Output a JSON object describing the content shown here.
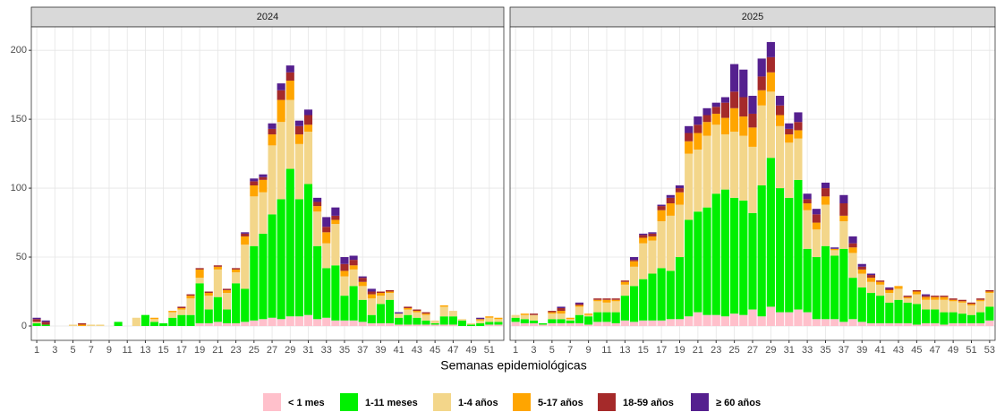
{
  "chart_data": {
    "type": "bar",
    "stacked": true,
    "x_label": "Semanas epidemiológicas",
    "ylim": [
      -10.4,
      217
    ],
    "yticks": [
      0,
      50,
      100,
      150,
      200
    ],
    "grid": true,
    "legend_position": "bottom",
    "series": [
      {
        "name": "< 1 mes",
        "color": "#ffc0cb"
      },
      {
        "name": "1-11 meses",
        "color": "#00f000"
      },
      {
        "name": "1-4 años",
        "color": "#f3d68a"
      },
      {
        "name": "5-17 años",
        "color": "#ffa500"
      },
      {
        "name": "18-59 años",
        "color": "#a52a2a"
      },
      {
        "name": "≥ 60 años",
        "color": "#55208f"
      }
    ],
    "panels": [
      {
        "title": "2024",
        "xlim": [
          0.4,
          52.6
        ],
        "x": [
          1,
          2,
          3,
          4,
          5,
          6,
          7,
          8,
          9,
          10,
          11,
          12,
          13,
          14,
          15,
          16,
          17,
          18,
          19,
          20,
          21,
          22,
          23,
          24,
          25,
          26,
          27,
          28,
          29,
          30,
          31,
          32,
          33,
          34,
          35,
          36,
          37,
          38,
          39,
          40,
          41,
          42,
          43,
          44,
          45,
          46,
          47,
          48,
          49,
          50,
          51,
          52
        ],
        "xticks": [
          1,
          3,
          5,
          7,
          9,
          11,
          13,
          15,
          17,
          19,
          21,
          23,
          25,
          27,
          29,
          31,
          33,
          35,
          37,
          39,
          41,
          43,
          45,
          47,
          49,
          51
        ],
        "values": [
          [
            0,
            0,
            0,
            0,
            0,
            0,
            0,
            0,
            0,
            0,
            0,
            0,
            0,
            0,
            0,
            0,
            0,
            0,
            2,
            2,
            3,
            2,
            2,
            3,
            4,
            5,
            6,
            5,
            7,
            7,
            8,
            5,
            6,
            4,
            4,
            4,
            3,
            2,
            2,
            2,
            1,
            1,
            1,
            1,
            1,
            1,
            1,
            0,
            0,
            0,
            1,
            1
          ],
          [
            2,
            1,
            0,
            0,
            0,
            0,
            0,
            0,
            0,
            3,
            0,
            0,
            8,
            3,
            2,
            6,
            8,
            8,
            29,
            10,
            18,
            10,
            29,
            24,
            54,
            62,
            75,
            87,
            107,
            85,
            95,
            53,
            36,
            40,
            18,
            25,
            16,
            6,
            14,
            17,
            5,
            7,
            5,
            3,
            1,
            6,
            6,
            4,
            1,
            2,
            2,
            2
          ],
          [
            1,
            0,
            0,
            0,
            1,
            0,
            1,
            1,
            0,
            0,
            0,
            6,
            0,
            2,
            0,
            4,
            4,
            12,
            4,
            10,
            20,
            12,
            8,
            32,
            36,
            30,
            50,
            56,
            50,
            40,
            38,
            25,
            18,
            30,
            14,
            12,
            10,
            12,
            6,
            5,
            3,
            4,
            4,
            4,
            2,
            7,
            4,
            1,
            1,
            2,
            3,
            2
          ],
          [
            0,
            0,
            0,
            0,
            0,
            1,
            0,
            0,
            0,
            0,
            0,
            0,
            0,
            1,
            0,
            1,
            1,
            2,
            6,
            2,
            2,
            2,
            2,
            6,
            8,
            9,
            8,
            16,
            14,
            7,
            5,
            4,
            8,
            3,
            4,
            3,
            3,
            3,
            2,
            1,
            0,
            1,
            1,
            1,
            0,
            1,
            0,
            0,
            0,
            1,
            1,
            1
          ],
          [
            2,
            2,
            0,
            0,
            0,
            1,
            0,
            0,
            0,
            0,
            0,
            0,
            0,
            0,
            0,
            0,
            1,
            1,
            1,
            1,
            1,
            1,
            1,
            2,
            3,
            2,
            4,
            7,
            6,
            6,
            7,
            3,
            4,
            3,
            5,
            4,
            3,
            2,
            1,
            1,
            0,
            1,
            1,
            1,
            0,
            0,
            0,
            0,
            0,
            0,
            0,
            0
          ],
          [
            1,
            1,
            0,
            0,
            0,
            0,
            0,
            0,
            0,
            0,
            0,
            0,
            0,
            0,
            0,
            0,
            0,
            0,
            0,
            0,
            0,
            0,
            0,
            1,
            2,
            2,
            4,
            5,
            5,
            4,
            4,
            3,
            7,
            6,
            5,
            3,
            1,
            2,
            0,
            0,
            1,
            0,
            0,
            0,
            0,
            0,
            0,
            0,
            0,
            1,
            0,
            0
          ]
        ]
      },
      {
        "title": "2025",
        "xlim": [
          0.4,
          53.6
        ],
        "x": [
          1,
          2,
          3,
          4,
          5,
          6,
          7,
          8,
          9,
          10,
          11,
          12,
          13,
          14,
          15,
          16,
          17,
          18,
          19,
          20,
          21,
          22,
          23,
          24,
          25,
          26,
          27,
          28,
          29,
          30,
          31,
          32,
          33,
          34,
          35,
          36,
          37,
          38,
          39,
          40,
          41,
          42,
          43,
          44,
          45,
          46,
          47,
          48,
          49,
          50,
          51,
          52,
          53
        ],
        "xticks": [
          1,
          3,
          5,
          7,
          9,
          11,
          13,
          15,
          17,
          19,
          21,
          23,
          25,
          27,
          29,
          31,
          33,
          35,
          37,
          39,
          41,
          43,
          45,
          47,
          49,
          51,
          53
        ],
        "values": [
          [
            3,
            2,
            2,
            1,
            2,
            2,
            2,
            2,
            1,
            3,
            3,
            2,
            4,
            3,
            4,
            4,
            4,
            5,
            5,
            7,
            10,
            8,
            8,
            7,
            9,
            8,
            12,
            7,
            14,
            10,
            10,
            12,
            10,
            5,
            5,
            5,
            3,
            5,
            3,
            2,
            2,
            2,
            2,
            2,
            1,
            2,
            2,
            1,
            2,
            2,
            2,
            2,
            4
          ],
          [
            3,
            3,
            2,
            1,
            3,
            3,
            2,
            6,
            6,
            7,
            7,
            8,
            18,
            26,
            30,
            34,
            38,
            35,
            45,
            70,
            73,
            78,
            88,
            92,
            84,
            83,
            70,
            95,
            108,
            90,
            83,
            94,
            46,
            45,
            53,
            46,
            53,
            30,
            25,
            22,
            20,
            15,
            17,
            15,
            15,
            10,
            10,
            9,
            8,
            7,
            6,
            8,
            10
          ],
          [
            2,
            3,
            4,
            0,
            4,
            4,
            1,
            6,
            1,
            8,
            7,
            8,
            8,
            14,
            26,
            24,
            34,
            40,
            38,
            48,
            45,
            52,
            50,
            40,
            48,
            47,
            48,
            58,
            48,
            45,
            40,
            30,
            28,
            20,
            30,
            4,
            20,
            18,
            10,
            8,
            8,
            7,
            8,
            3,
            7,
            7,
            7,
            9,
            8,
            8,
            7,
            8,
            10
          ],
          [
            0,
            1,
            0,
            0,
            1,
            2,
            1,
            1,
            1,
            1,
            2,
            1,
            2,
            4,
            4,
            3,
            8,
            9,
            9,
            9,
            12,
            10,
            8,
            12,
            17,
            14,
            14,
            11,
            14,
            8,
            6,
            6,
            5,
            5,
            6,
            1,
            4,
            4,
            3,
            3,
            2,
            2,
            2,
            1,
            2,
            2,
            2,
            2,
            1,
            1,
            1,
            1,
            1
          ],
          [
            0,
            0,
            1,
            0,
            1,
            2,
            0,
            1,
            0,
            1,
            1,
            1,
            1,
            1,
            2,
            2,
            3,
            4,
            3,
            6,
            6,
            5,
            5,
            11,
            12,
            14,
            10,
            10,
            11,
            7,
            4,
            6,
            3,
            6,
            6,
            0,
            9,
            3,
            2,
            2,
            1,
            1,
            0,
            1,
            1,
            1,
            1,
            1,
            1,
            1,
            1,
            1,
            1
          ],
          [
            0,
            0,
            0,
            0,
            0,
            1,
            0,
            1,
            0,
            0,
            0,
            0,
            0,
            2,
            1,
            1,
            1,
            2,
            2,
            5,
            6,
            5,
            3,
            4,
            20,
            20,
            13,
            13,
            11,
            7,
            4,
            7,
            4,
            4,
            4,
            1,
            6,
            5,
            2,
            1,
            0,
            1,
            0,
            0,
            0,
            1,
            0,
            0,
            0,
            0,
            0,
            0,
            0
          ]
        ]
      }
    ]
  }
}
